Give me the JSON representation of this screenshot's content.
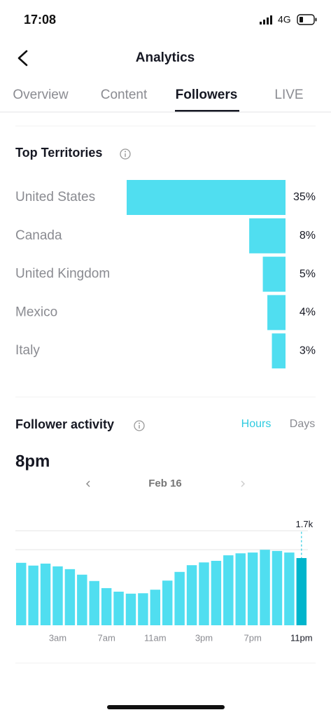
{
  "status_bar": {
    "time": "17:08",
    "network": "4G"
  },
  "header": {
    "title": "Analytics"
  },
  "tabs": {
    "items": [
      "Overview",
      "Content",
      "Followers",
      "LIVE"
    ],
    "active": 2
  },
  "top_territories": {
    "title": "Top Territories",
    "chart_data": {
      "type": "bar",
      "orientation": "horizontal",
      "categories": [
        "United States",
        "Canada",
        "United Kingdom",
        "Mexico",
        "Italy"
      ],
      "values": [
        35,
        8,
        5,
        4,
        3
      ],
      "value_labels": [
        "35%",
        "8%",
        "5%",
        "4%",
        "3%"
      ],
      "color": "#50def0",
      "xlim": [
        0,
        35
      ]
    }
  },
  "follower_activity": {
    "title": "Follower activity",
    "toggle": {
      "items": [
        "Hours",
        "Days"
      ],
      "active": 0
    },
    "selected_time": "8pm",
    "date": "Feb 16",
    "chart_data": {
      "type": "bar",
      "categories": [
        null,
        null,
        null,
        "3am",
        null,
        null,
        null,
        "7am",
        null,
        null,
        null,
        "11am",
        null,
        null,
        null,
        "3pm",
        null,
        null,
        null,
        "7pm",
        null,
        null,
        null,
        "11pm"
      ],
      "values": [
        1580,
        1510,
        1560,
        1490,
        1420,
        1280,
        1120,
        940,
        850,
        800,
        810,
        900,
        1130,
        1350,
        1520,
        1590,
        1630,
        1770,
        1820,
        1840,
        1910,
        1880,
        1840,
        1700
      ],
      "value_labels": [
        null,
        null,
        null,
        null,
        null,
        null,
        null,
        null,
        null,
        null,
        null,
        null,
        null,
        null,
        null,
        null,
        null,
        null,
        null,
        null,
        null,
        null,
        null,
        "1.7k"
      ],
      "color": "#50def0",
      "highlight_color": "#00b5cc",
      "ylim": [
        0,
        2400
      ]
    }
  }
}
